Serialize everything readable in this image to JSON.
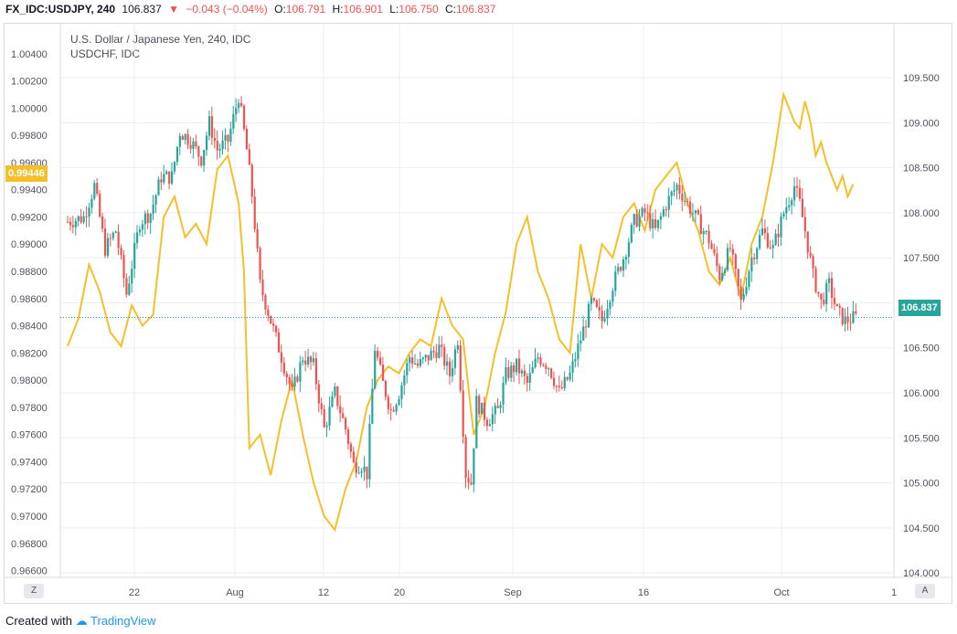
{
  "header": {
    "symbol": "FX_IDC:USDJPY, 240",
    "price": "106.837",
    "change": "−0.043 (−0.04%)",
    "o_label": "O:",
    "o_value": "106.791",
    "h_label": "H:",
    "h_value": "106.901",
    "l_label": "L:",
    "l_value": "106.750",
    "c_label": "C:",
    "c_value": "106.837"
  },
  "legend": {
    "main_title": "U.S. Dollar / Japanese Yen, 240, IDC",
    "compare_title": "USDCHF, IDC"
  },
  "corners": {
    "left": "Z",
    "right": "A"
  },
  "footer": {
    "created_with": "Created with",
    "brand": "TradingView"
  },
  "colors": {
    "up": "#26a69a",
    "down": "#ef5350",
    "compare": "#f6bf2a",
    "last_price_tag": "#26a69a",
    "compare_tag": "#f6bf2a",
    "grid": "#ecedf0"
  },
  "chart_data": [
    {
      "type": "candlestick",
      "series_name": "U.S. Dollar / Japanese Yen, 240, IDC",
      "y_axis": "right",
      "ylim": [
        103.95,
        110.1
      ],
      "y_ticks": [
        "104.000",
        "104.500",
        "105.000",
        "105.500",
        "106.000",
        "106.500",
        "107.000",
        "107.500",
        "108.000",
        "108.500",
        "109.000",
        "109.500"
      ],
      "last_price": "106.837",
      "x_ticks": [
        "22",
        "Aug",
        "12",
        "20",
        "Sep",
        "16",
        "Oct",
        "1"
      ],
      "trajectory": [
        [
          0,
          107.9
        ],
        [
          6,
          107.95
        ],
        [
          10,
          108.3
        ],
        [
          14,
          107.6
        ],
        [
          18,
          107.8
        ],
        [
          22,
          107.1
        ],
        [
          27,
          107.9
        ],
        [
          31,
          108.0
        ],
        [
          35,
          108.4
        ],
        [
          39,
          108.4
        ],
        [
          42,
          108.9
        ],
        [
          46,
          108.8
        ],
        [
          50,
          108.6
        ],
        [
          53,
          109.0
        ],
        [
          56,
          108.7
        ],
        [
          60,
          108.8
        ],
        [
          64,
          109.3
        ],
        [
          67,
          108.7
        ],
        [
          69,
          108.2
        ],
        [
          72,
          107.2
        ],
        [
          76,
          106.8
        ],
        [
          80,
          106.4
        ],
        [
          84,
          106.0
        ],
        [
          88,
          106.4
        ],
        [
          92,
          106.3
        ],
        [
          96,
          105.6
        ],
        [
          100,
          106.0
        ],
        [
          104,
          105.6
        ],
        [
          107,
          105.2
        ],
        [
          110,
          105.2
        ],
        [
          112,
          105.1
        ],
        [
          115,
          106.5
        ],
        [
          118,
          106.1
        ],
        [
          121,
          105.8
        ],
        [
          124,
          106.0
        ],
        [
          128,
          106.4
        ],
        [
          131,
          106.3
        ],
        [
          135,
          106.4
        ],
        [
          139,
          106.5
        ],
        [
          143,
          106.2
        ],
        [
          146,
          106.6
        ],
        [
          149,
          105.1
        ],
        [
          151,
          105.0
        ],
        [
          153,
          105.9
        ],
        [
          157,
          105.7
        ],
        [
          161,
          105.8
        ],
        [
          164,
          106.2
        ],
        [
          168,
          106.3
        ],
        [
          172,
          106.1
        ],
        [
          176,
          106.4
        ],
        [
          180,
          106.3
        ],
        [
          184,
          106.0
        ],
        [
          188,
          106.2
        ],
        [
          192,
          106.6
        ],
        [
          196,
          107.0
        ],
        [
          200,
          106.8
        ],
        [
          204,
          107.2
        ],
        [
          208,
          107.5
        ],
        [
          212,
          107.9
        ],
        [
          216,
          108.0
        ],
        [
          220,
          107.8
        ],
        [
          224,
          108.1
        ],
        [
          228,
          108.3
        ],
        [
          232,
          108.1
        ],
        [
          236,
          107.9
        ],
        [
          240,
          107.7
        ],
        [
          244,
          107.3
        ],
        [
          248,
          107.6
        ],
        [
          252,
          107.0
        ],
        [
          256,
          107.5
        ],
        [
          260,
          107.8
        ],
        [
          264,
          107.6
        ],
        [
          268,
          108.0
        ],
        [
          272,
          108.3
        ],
        [
          274,
          108.1
        ],
        [
          276,
          107.8
        ],
        [
          279,
          107.3
        ],
        [
          282,
          107.0
        ],
        [
          285,
          107.2
        ],
        [
          288,
          106.9
        ],
        [
          291,
          106.8
        ],
        [
          295,
          106.84
        ]
      ]
    },
    {
      "type": "line",
      "series_name": "USDCHF, IDC",
      "y_axis": "left",
      "ylim": [
        0.9655,
        1.0062
      ],
      "y_ticks": [
        "0.96600",
        "0.96800",
        "0.97000",
        "0.97200",
        "0.97400",
        "0.97600",
        "0.97800",
        "0.98000",
        "0.98200",
        "0.98400",
        "0.98600",
        "0.98800",
        "0.99000",
        "0.99200",
        "0.99400",
        "0.99600",
        "0.99800",
        "1.00000",
        "1.00200",
        "1.00400"
      ],
      "last_value": "0.99446",
      "x": [
        0,
        4,
        8,
        12,
        16,
        20,
        24,
        28,
        32,
        36,
        40,
        44,
        48,
        52,
        56,
        60,
        64,
        66,
        68,
        72,
        76,
        80,
        84,
        88,
        92,
        96,
        100,
        104,
        108,
        112,
        116,
        120,
        124,
        128,
        132,
        136,
        140,
        144,
        148,
        152,
        156,
        160,
        164,
        168,
        172,
        176,
        180,
        184,
        188,
        192,
        196,
        200,
        204,
        208,
        212,
        216,
        220,
        224,
        228,
        232,
        236,
        240,
        244,
        248,
        252,
        256,
        260,
        264,
        268,
        272,
        274,
        276,
        278,
        280,
        282,
        284,
        286,
        288,
        290,
        292,
        294
      ],
      "values": [
        0.9825,
        0.9845,
        0.9885,
        0.9865,
        0.9835,
        0.9825,
        0.9855,
        0.984,
        0.9848,
        0.992,
        0.9935,
        0.9905,
        0.9915,
        0.99,
        0.9955,
        0.9965,
        0.993,
        0.988,
        0.975,
        0.976,
        0.973,
        0.977,
        0.98,
        0.976,
        0.9725,
        0.97,
        0.969,
        0.972,
        0.974,
        0.978,
        0.98,
        0.981,
        0.9805,
        0.982,
        0.983,
        0.9825,
        0.986,
        0.984,
        0.983,
        0.976,
        0.978,
        0.982,
        0.985,
        0.99,
        0.992,
        0.988,
        0.986,
        0.983,
        0.982,
        0.99,
        0.986,
        0.99,
        0.989,
        0.992,
        0.993,
        0.991,
        0.994,
        0.995,
        0.996,
        0.993,
        0.991,
        0.988,
        0.987,
        0.989,
        0.986,
        0.99,
        0.992,
        0.996,
        1.001,
        0.999,
        0.9985,
        1.0005,
        0.999,
        0.9965,
        0.9975,
        0.996,
        0.995,
        0.994,
        0.995,
        0.9935,
        0.9944
      ]
    }
  ]
}
